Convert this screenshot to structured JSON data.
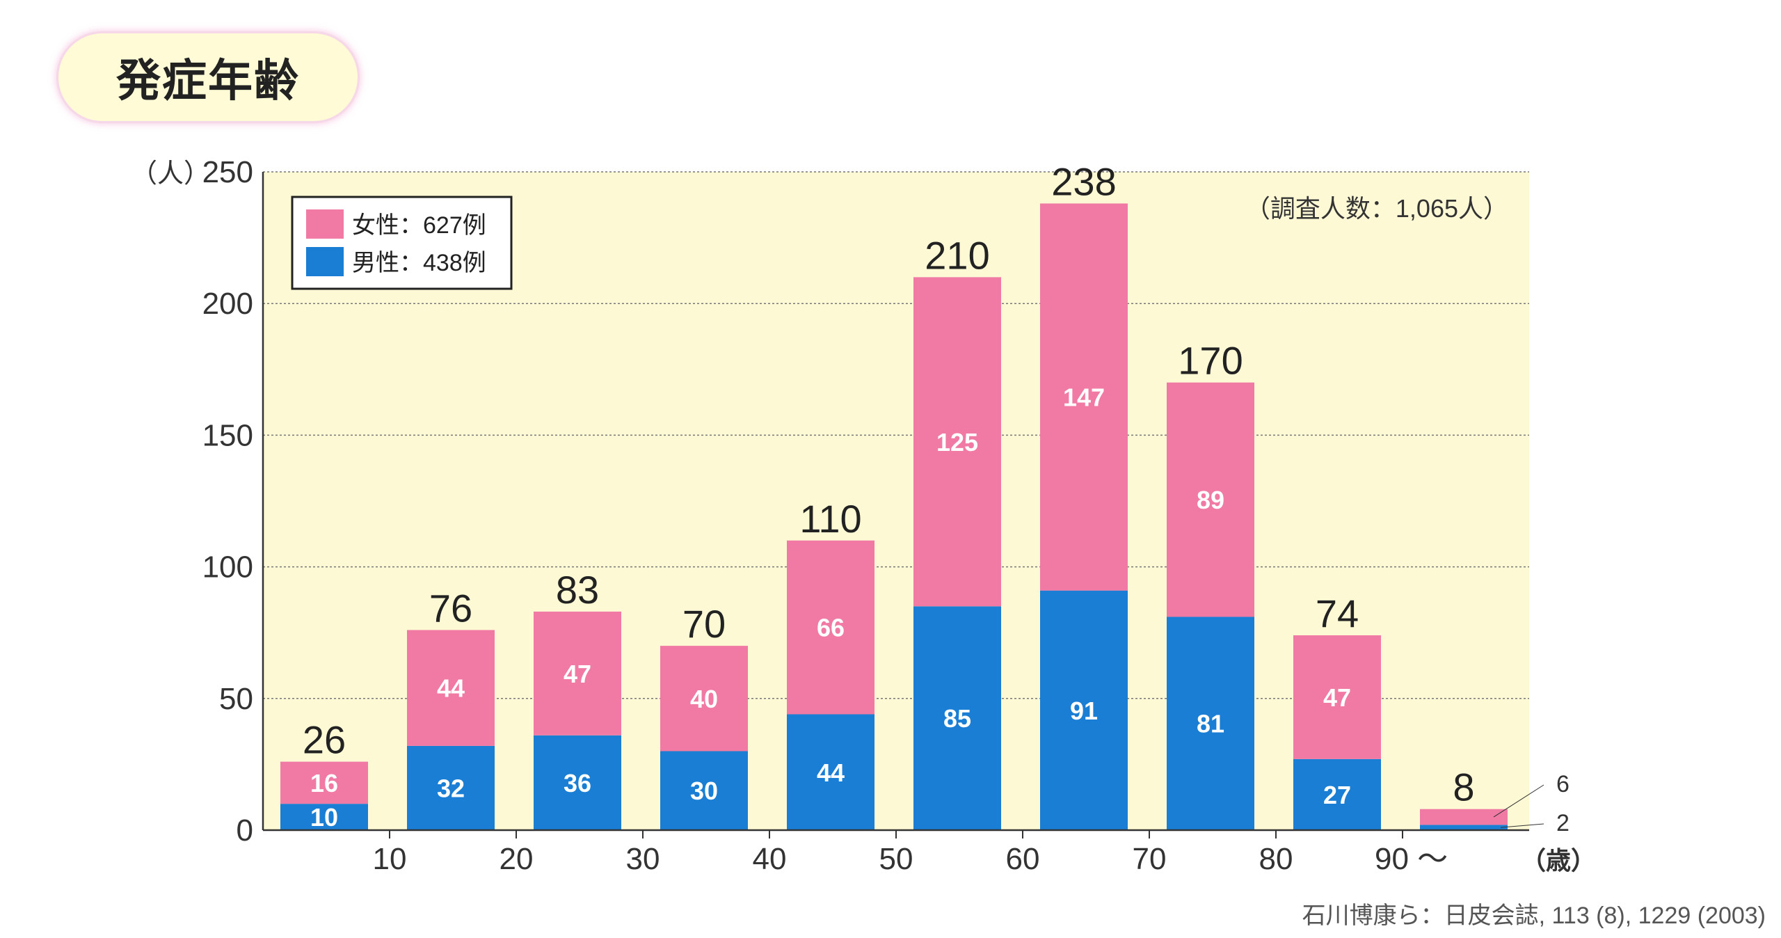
{
  "title": "発症年齢",
  "citation": "石川博康ら：日皮会誌, 113 (8), 1229 (2003)",
  "chart_data": {
    "type": "bar",
    "stacked": true,
    "y_unit": "（人）",
    "x_unit": "（歳）",
    "ylim": [
      0,
      250
    ],
    "y_ticks": [
      0,
      50,
      100,
      150,
      200,
      250
    ],
    "x_tick_labels": [
      "10",
      "20",
      "30",
      "40",
      "50",
      "60",
      "70",
      "80",
      "90 〜"
    ],
    "totals": [
      26,
      76,
      83,
      70,
      110,
      210,
      238,
      170,
      74,
      8
    ],
    "series": [
      {
        "name": "男性：438例",
        "color": "#1a7fd4",
        "values": [
          10,
          32,
          36,
          30,
          44,
          85,
          91,
          81,
          27,
          2
        ]
      },
      {
        "name": "女性：627例",
        "color": "#f07aa3",
        "values": [
          16,
          44,
          47,
          40,
          66,
          125,
          147,
          89,
          47,
          6
        ]
      }
    ],
    "annotation": "（調査人数：1,065人）",
    "legend_position": "top-left",
    "plot_background": "#fdf9d5",
    "grid": true
  }
}
